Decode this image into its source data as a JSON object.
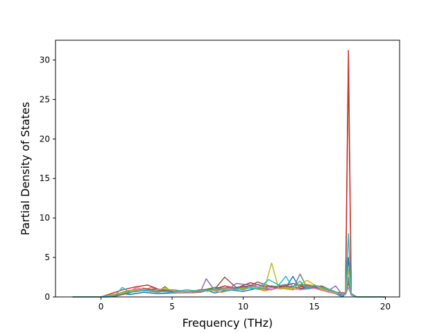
{
  "chart_data": {
    "type": "line",
    "title": "",
    "xlabel": "Frequency (THz)",
    "ylabel": "Partial Density of States",
    "xlim": [
      -3.2,
      21
    ],
    "ylim": [
      0,
      32.5
    ],
    "xticks": [
      0,
      5,
      10,
      15,
      20
    ],
    "xtick_labels": [
      "0",
      "5",
      "10",
      "15",
      "20"
    ],
    "yticks": [
      0,
      5,
      10,
      15,
      20,
      25,
      30
    ],
    "ytick_labels": [
      "0",
      "5",
      "10",
      "15",
      "20",
      "25",
      "30"
    ],
    "grid": false,
    "legend": "none",
    "series": [
      {
        "color": "#1f77b4",
        "x": [
          -2,
          0,
          0.5,
          1,
          1.5,
          2,
          3,
          4,
          5,
          6,
          7,
          7.5,
          8,
          9,
          10,
          11,
          12,
          12.5,
          13,
          13.5,
          14,
          15,
          15.5,
          16,
          16.5,
          17,
          17.2,
          17.4,
          17.6,
          18,
          20
        ],
        "y": [
          0,
          0,
          0,
          0.1,
          0.5,
          0.3,
          0.6,
          0.4,
          0.5,
          0.5,
          0.6,
          0.8,
          0.5,
          0.9,
          0.7,
          1.1,
          0.9,
          1.5,
          1.2,
          2.6,
          1.0,
          1.3,
          1.0,
          0.6,
          0.4,
          0,
          0.5,
          5.0,
          0.3,
          0,
          0
        ]
      },
      {
        "color": "#ff7f0e",
        "x": [
          -2,
          0,
          0.8,
          1.5,
          2.5,
          3,
          3.5,
          4.5,
          5.5,
          6.5,
          7.5,
          8.5,
          9.5,
          10.5,
          11.5,
          12.5,
          13.5,
          14.5,
          15.5,
          16.5,
          17.2,
          17.4,
          17.6,
          18,
          20
        ],
        "y": [
          0,
          0,
          0.2,
          0.6,
          1.0,
          0.8,
          1.2,
          0.7,
          0.8,
          0.5,
          0.9,
          0.6,
          1.0,
          1.2,
          0.8,
          1.1,
          0.9,
          1.6,
          1.2,
          0.5,
          0.4,
          2.0,
          0.3,
          0,
          0
        ]
      },
      {
        "color": "#2ca02c",
        "x": [
          -2,
          0,
          1,
          2,
          3,
          4,
          4.5,
          5,
          6,
          7,
          8,
          9,
          10,
          11,
          12,
          13,
          14,
          15,
          16,
          17,
          17.2,
          17.4,
          17.6,
          18,
          20
        ],
        "y": [
          0,
          0,
          0.3,
          0.8,
          0.9,
          0.7,
          1.3,
          0.6,
          0.7,
          0.8,
          1.2,
          1.0,
          1.3,
          1.0,
          1.4,
          1.1,
          1.6,
          1.3,
          0.8,
          0.2,
          0.5,
          29.5,
          0.4,
          0,
          0
        ]
      },
      {
        "color": "#d62728",
        "x": [
          -2,
          0,
          0.7,
          1.5,
          2.5,
          3.3,
          4,
          5,
          6,
          7,
          8,
          8.7,
          9.5,
          10.5,
          11.5,
          12.5,
          13.5,
          14.5,
          15.5,
          16.5,
          17.2,
          17.4,
          17.6,
          18,
          20
        ],
        "y": [
          0,
          0,
          0.4,
          0.9,
          1.3,
          1.5,
          1.0,
          0.7,
          0.6,
          0.9,
          1.0,
          1.4,
          1.1,
          1.8,
          1.3,
          1.2,
          1.7,
          1.1,
          1.4,
          0.6,
          0.5,
          31.2,
          0.4,
          0,
          0
        ]
      },
      {
        "color": "#9467bd",
        "x": [
          -2,
          0,
          1,
          2,
          3,
          4,
          5,
          6,
          7,
          7.4,
          8,
          9,
          9.5,
          10.5,
          11,
          12,
          13,
          14,
          15,
          16,
          16.5,
          17,
          17.2,
          17.4,
          17.6,
          18,
          20
        ],
        "y": [
          0,
          0,
          0.2,
          0.6,
          0.9,
          1.0,
          0.8,
          0.6,
          0.7,
          2.3,
          0.8,
          1.0,
          1.7,
          1.5,
          1.3,
          1.0,
          1.2,
          1.5,
          1.2,
          0.8,
          1.4,
          0.2,
          0.4,
          2.5,
          0.3,
          0,
          0
        ]
      },
      {
        "color": "#8c564b",
        "x": [
          -2,
          0,
          1,
          2,
          3,
          4,
          5,
          6,
          7,
          8,
          8.7,
          9.5,
          10.5,
          11,
          12,
          13,
          14,
          15,
          16,
          17,
          17.2,
          17.4,
          17.6,
          18,
          20
        ],
        "y": [
          0,
          0,
          0.1,
          0.5,
          1.1,
          0.8,
          0.9,
          0.6,
          0.8,
          1.0,
          2.5,
          1.2,
          1.4,
          1.9,
          1.3,
          1.4,
          1.1,
          1.2,
          0.7,
          0.2,
          0.4,
          1.8,
          0.3,
          0,
          0
        ]
      },
      {
        "color": "#e377c2",
        "x": [
          -2,
          0,
          1,
          2,
          2.5,
          3,
          4,
          5,
          6,
          7,
          8,
          9,
          10,
          11,
          12,
          13,
          14,
          15,
          16,
          17,
          17.2,
          17.4,
          17.6,
          18,
          20
        ],
        "y": [
          0,
          0,
          0.2,
          0.7,
          1.2,
          0.9,
          0.7,
          0.6,
          0.5,
          0.8,
          0.9,
          1.1,
          1.0,
          1.3,
          1.0,
          1.2,
          0.9,
          1.1,
          0.6,
          0.2,
          0.3,
          1.2,
          0.2,
          0,
          0
        ]
      },
      {
        "color": "#7f7f7f",
        "x": [
          -2,
          0,
          1,
          2,
          3,
          4,
          5,
          6,
          7,
          8,
          9,
          10,
          11,
          12,
          13,
          13.5,
          14,
          14.5,
          15,
          16,
          17,
          17.2,
          17.4,
          17.6,
          18,
          20
        ],
        "y": [
          0,
          0,
          0.2,
          0.6,
          0.8,
          0.6,
          0.9,
          0.7,
          0.6,
          1.0,
          1.2,
          0.9,
          1.6,
          1.2,
          1.6,
          1.0,
          2.9,
          1.1,
          1.2,
          0.8,
          0.2,
          0.4,
          2.2,
          0.3,
          0,
          0
        ]
      },
      {
        "color": "#bcbd22",
        "x": [
          -2,
          0,
          0.8,
          1.5,
          2.5,
          3.5,
          4.5,
          5.5,
          6.5,
          7.5,
          8.5,
          9.5,
          10.5,
          11.5,
          12,
          12.5,
          13.5,
          14.5,
          15.5,
          16.5,
          17.2,
          17.4,
          17.6,
          18,
          20
        ],
        "y": [
          0,
          0,
          0.3,
          0.5,
          0.9,
          0.7,
          1.1,
          0.6,
          0.8,
          0.7,
          1.0,
          0.9,
          1.2,
          1.1,
          4.3,
          1.0,
          1.1,
          2.1,
          1.0,
          0.5,
          0.4,
          3.5,
          0.3,
          0,
          0
        ]
      },
      {
        "color": "#17becf",
        "x": [
          -2,
          0,
          1,
          1.5,
          2,
          3,
          4,
          5,
          6,
          7,
          8,
          9,
          10,
          11,
          11.8,
          12.5,
          13,
          13.5,
          14,
          14.5,
          15,
          16,
          17,
          17.2,
          17.4,
          17.6,
          18,
          20
        ],
        "y": [
          0,
          0,
          0.2,
          1.2,
          0.6,
          0.8,
          0.7,
          0.6,
          0.9,
          0.7,
          1.0,
          0.8,
          1.2,
          1.0,
          2.2,
          1.5,
          2.6,
          1.2,
          2.0,
          1.0,
          1.5,
          1.0,
          0.3,
          0.4,
          8.0,
          0.3,
          0,
          0
        ]
      }
    ]
  }
}
